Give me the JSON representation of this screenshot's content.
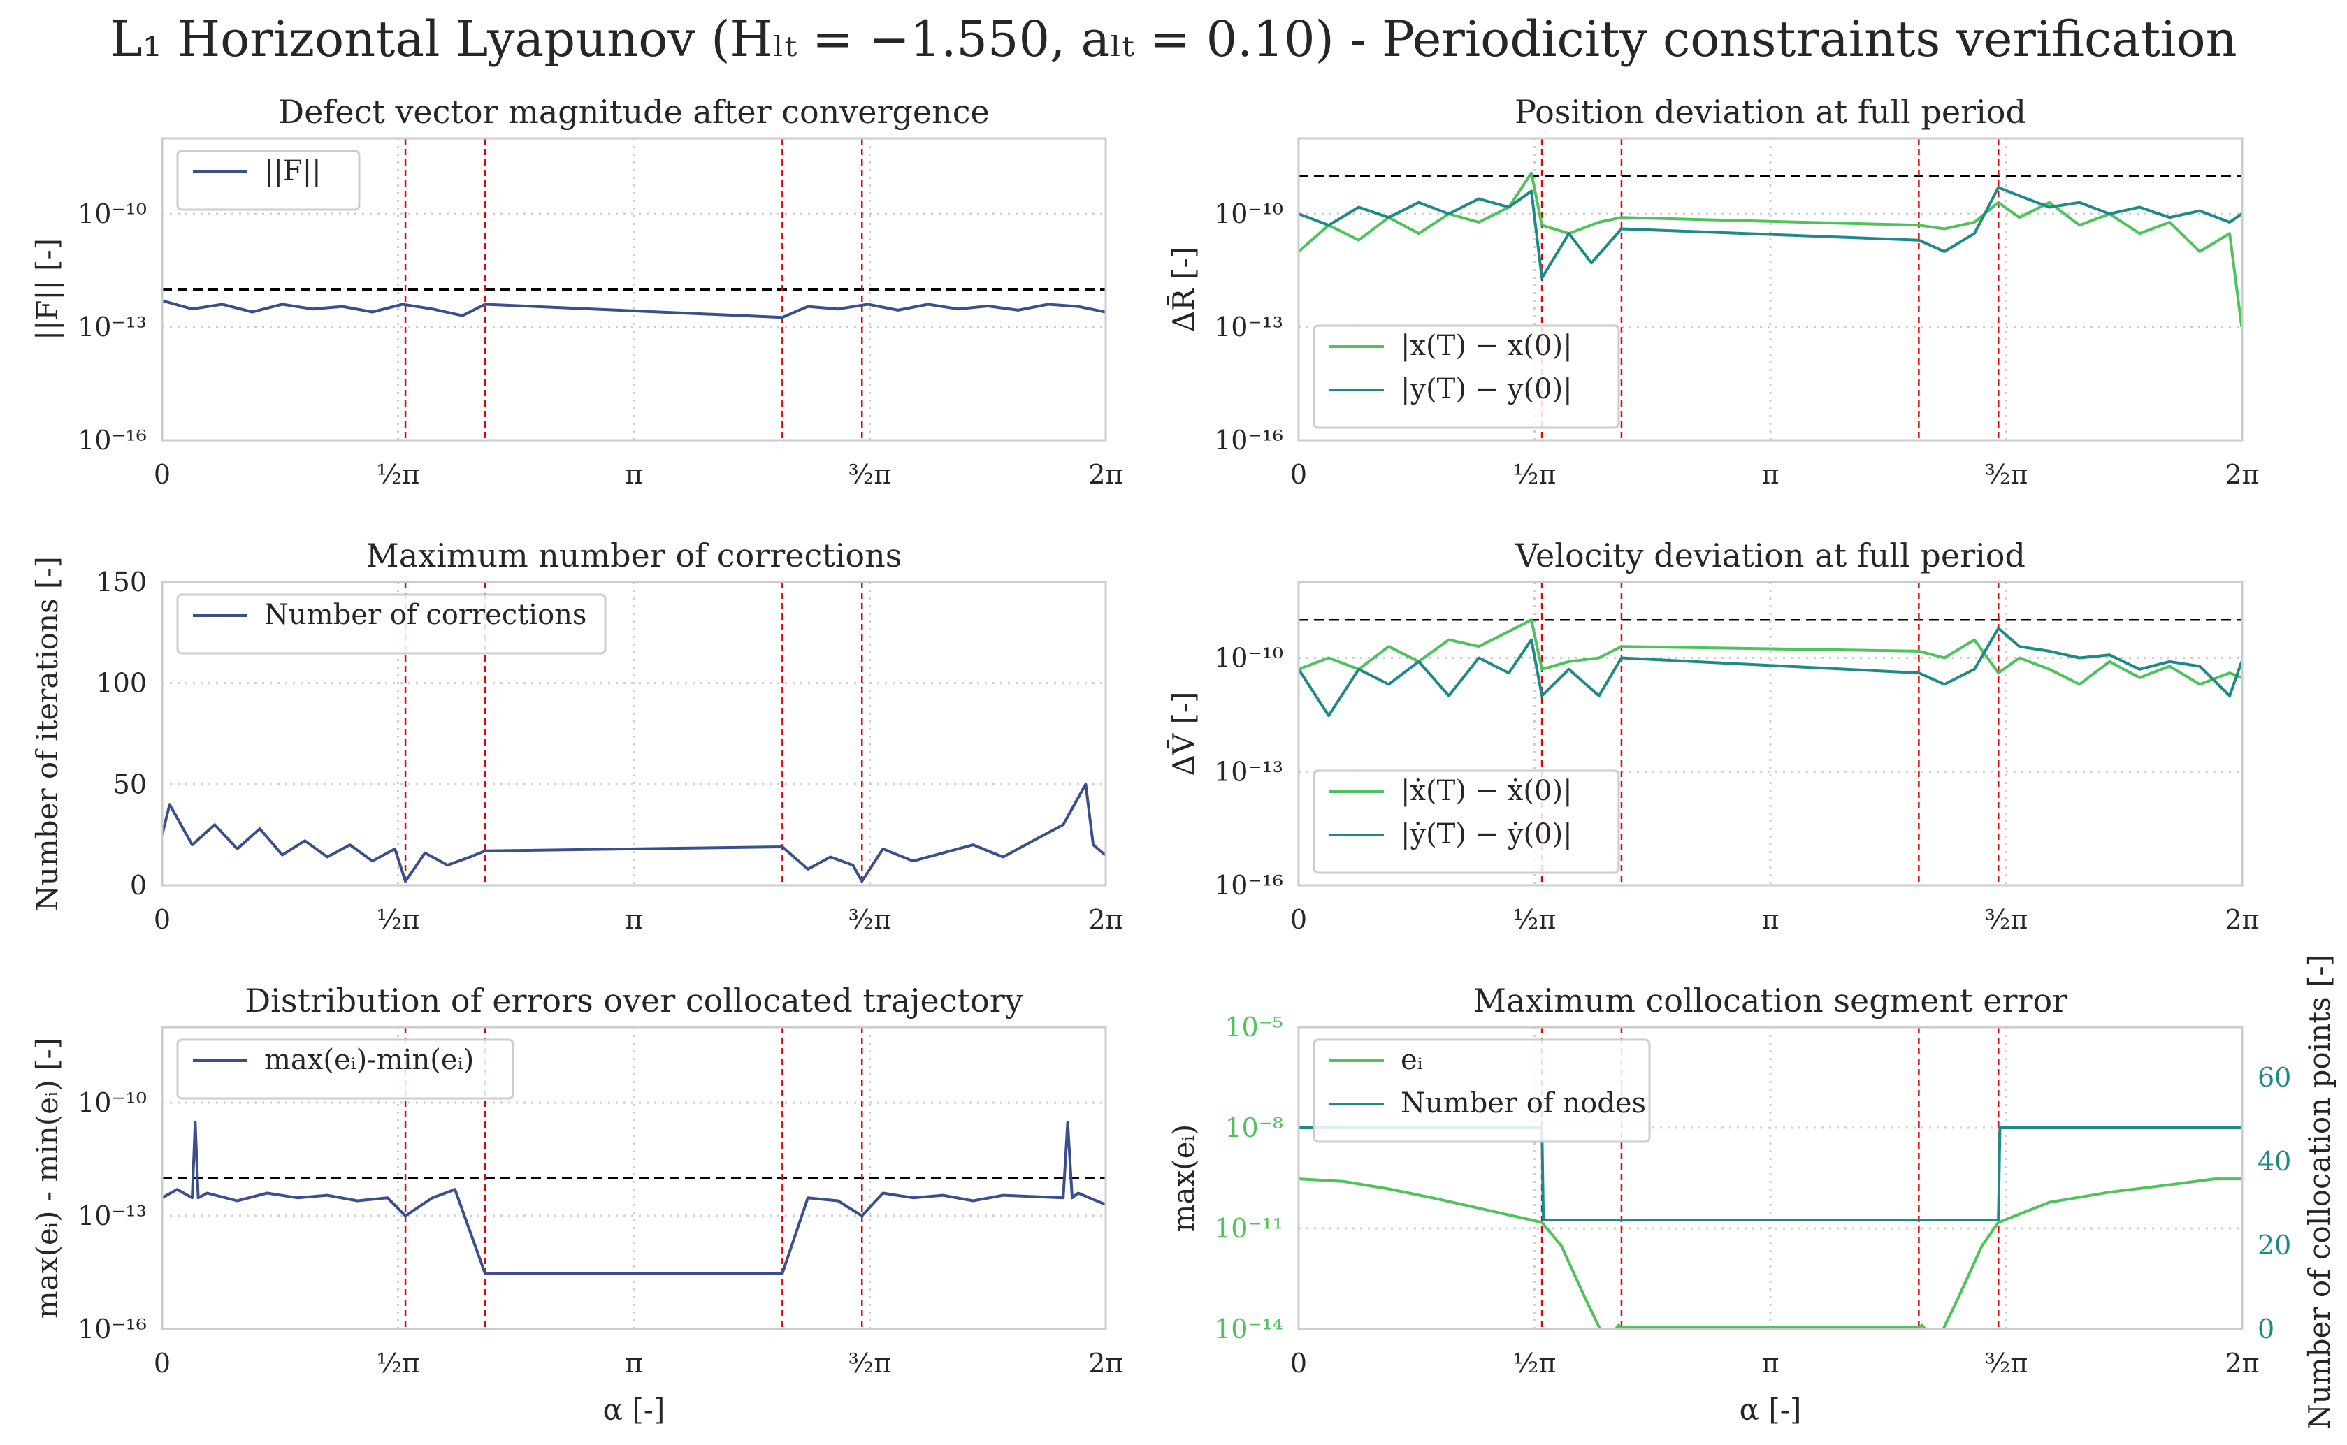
{
  "figure": {
    "title": "L₁ Horizontal Lyapunov (Hₗₜ = −1.550, aₗₜ = 0.10) - Periodicity constraints verification"
  },
  "colors": {
    "navy": "#3b4f8a",
    "light_green": "#4ec35c",
    "teal": "#1e8a87",
    "event_line": "#e8000b",
    "threshold": "#000000"
  },
  "chart_data": [
    {
      "id": "defect",
      "type": "line",
      "title": "Defect vector magnitude after convergence",
      "xlabel": "",
      "ylabel": "||F|| [-]",
      "yscale": "log",
      "xlim": [
        0,
        6.2832
      ],
      "ylim": [
        1e-16,
        1e-08
      ],
      "x_ticks": [
        "0",
        "½π",
        "π",
        "³⁄₂π",
        "2π"
      ],
      "y_ticks": [
        "10⁻¹⁰",
        "10⁻¹³",
        "10⁻¹⁶"
      ],
      "grid": true,
      "legend": "top-left",
      "threshold": 1e-12,
      "event_lines": [
        1.62,
        2.15,
        4.13,
        4.66
      ],
      "series": [
        {
          "name": "||F||",
          "color": "#3b4f8a",
          "x": [
            0.0,
            0.2,
            0.4,
            0.6,
            0.8,
            1.0,
            1.2,
            1.4,
            1.6,
            1.8,
            2.0,
            2.15,
            4.13,
            4.3,
            4.5,
            4.7,
            4.9,
            5.1,
            5.3,
            5.5,
            5.7,
            5.9,
            6.1,
            6.28
          ],
          "values": [
            5e-13,
            3e-13,
            4e-13,
            2.5e-13,
            4e-13,
            3e-13,
            3.5e-13,
            2.5e-13,
            4e-13,
            3e-13,
            2e-13,
            4e-13,
            1.8e-13,
            3.5e-13,
            3e-13,
            4e-13,
            2.8e-13,
            4e-13,
            3e-13,
            3.6e-13,
            2.8e-13,
            4e-13,
            3.5e-13,
            2.5e-13
          ]
        }
      ]
    },
    {
      "id": "position",
      "type": "line",
      "title": "Position deviation at full period",
      "xlabel": "",
      "ylabel": "ΔR̄ [-]",
      "yscale": "log",
      "xlim": [
        0,
        6.2832
      ],
      "ylim": [
        1e-16,
        1e-08
      ],
      "x_ticks": [
        "0",
        "½π",
        "π",
        "³⁄₂π",
        "2π"
      ],
      "y_ticks": [
        "10⁻¹⁰",
        "10⁻¹³",
        "10⁻¹⁶"
      ],
      "grid": true,
      "legend": "bottom-left",
      "threshold": 1e-09,
      "event_lines": [
        1.62,
        2.15,
        4.13,
        4.66
      ],
      "series": [
        {
          "name": "|x(T) − x(0)|",
          "color": "#4ec35c",
          "x": [
            0.0,
            0.2,
            0.4,
            0.6,
            0.8,
            1.0,
            1.2,
            1.4,
            1.55,
            1.62,
            1.8,
            2.0,
            2.15,
            4.13,
            4.3,
            4.5,
            4.66,
            4.8,
            5.0,
            5.2,
            5.4,
            5.6,
            5.8,
            6.0,
            6.2,
            6.28
          ],
          "values": [
            1e-11,
            5e-11,
            2e-11,
            8e-11,
            3e-11,
            1e-10,
            6e-11,
            1.5e-10,
            1.2e-09,
            5e-11,
            3e-11,
            6e-11,
            8e-11,
            5e-11,
            4e-11,
            6e-11,
            2e-10,
            8e-11,
            2e-10,
            5e-11,
            1e-10,
            3e-11,
            6e-11,
            1e-11,
            3e-11,
            1e-13
          ]
        },
        {
          "name": "|y(T) − y(0)|",
          "color": "#1e8a87",
          "x": [
            0.0,
            0.2,
            0.4,
            0.6,
            0.8,
            1.0,
            1.2,
            1.4,
            1.55,
            1.62,
            1.8,
            1.95,
            2.15,
            4.13,
            4.3,
            4.5,
            4.66,
            4.8,
            5.0,
            5.2,
            5.4,
            5.6,
            5.8,
            6.0,
            6.2,
            6.28
          ],
          "values": [
            1e-10,
            5e-11,
            1.5e-10,
            8e-11,
            2e-10,
            1e-10,
            2.5e-10,
            1.5e-10,
            4e-10,
            2e-12,
            3e-11,
            5e-12,
            4e-11,
            2e-11,
            1e-11,
            3e-11,
            5e-10,
            3e-10,
            1.5e-10,
            2e-10,
            1e-10,
            1.5e-10,
            8e-11,
            1.2e-10,
            6e-11,
            1e-10
          ]
        }
      ]
    },
    {
      "id": "corrections",
      "type": "line",
      "title": "Maximum number of corrections",
      "xlabel": "",
      "ylabel": "Number of iterations [-]",
      "yscale": "linear",
      "xlim": [
        0,
        6.2832
      ],
      "ylim": [
        0,
        150
      ],
      "x_ticks": [
        "0",
        "½π",
        "π",
        "³⁄₂π",
        "2π"
      ],
      "y_ticks": [
        "0",
        "50",
        "100",
        "150"
      ],
      "grid": true,
      "legend": "top-left",
      "event_lines": [
        1.62,
        2.15,
        4.13,
        4.66
      ],
      "series": [
        {
          "name": "Number of corrections",
          "color": "#3b4f8a",
          "x": [
            0.0,
            0.05,
            0.2,
            0.35,
            0.5,
            0.65,
            0.8,
            0.95,
            1.1,
            1.25,
            1.4,
            1.55,
            1.62,
            1.75,
            1.9,
            2.05,
            2.15,
            4.13,
            4.3,
            4.45,
            4.6,
            4.66,
            4.8,
            5.0,
            5.2,
            5.4,
            5.6,
            5.8,
            6.0,
            6.15,
            6.2,
            6.28
          ],
          "values": [
            25,
            40,
            20,
            30,
            18,
            28,
            15,
            22,
            14,
            20,
            12,
            18,
            2,
            16,
            10,
            14,
            17,
            19,
            8,
            14,
            10,
            2,
            18,
            12,
            16,
            20,
            14,
            22,
            30,
            50,
            20,
            15
          ]
        }
      ]
    },
    {
      "id": "velocity",
      "type": "line",
      "title": "Velocity deviation at full period",
      "xlabel": "",
      "ylabel": "ΔV̄ [-]",
      "yscale": "log",
      "xlim": [
        0,
        6.2832
      ],
      "ylim": [
        1e-16,
        1e-08
      ],
      "x_ticks": [
        "0",
        "½π",
        "π",
        "³⁄₂π",
        "2π"
      ],
      "y_ticks": [
        "10⁻¹⁰",
        "10⁻¹³",
        "10⁻¹⁶"
      ],
      "grid": true,
      "legend": "bottom-left",
      "threshold": 1e-09,
      "event_lines": [
        1.62,
        2.15,
        4.13,
        4.66
      ],
      "series": [
        {
          "name": "|ẋ(T) − ẋ(0)|",
          "color": "#4ec35c",
          "x": [
            0.0,
            0.2,
            0.4,
            0.6,
            0.8,
            1.0,
            1.2,
            1.4,
            1.55,
            1.62,
            1.8,
            2.0,
            2.15,
            4.13,
            4.3,
            4.5,
            4.66,
            4.8,
            5.0,
            5.2,
            5.4,
            5.6,
            5.8,
            6.0,
            6.2,
            6.28
          ],
          "values": [
            5e-11,
            1e-10,
            5e-11,
            2e-10,
            8e-11,
            3e-10,
            2e-10,
            5e-10,
            1e-09,
            5e-11,
            8e-11,
            1e-10,
            2e-10,
            1.5e-10,
            1e-10,
            3e-10,
            4e-11,
            1e-10,
            5e-11,
            2e-11,
            8e-11,
            3e-11,
            6e-11,
            2e-11,
            4e-11,
            3e-11
          ]
        },
        {
          "name": "|ẏ(T) − ẏ(0)|",
          "color": "#1e8a87",
          "x": [
            0.0,
            0.2,
            0.4,
            0.6,
            0.8,
            1.0,
            1.2,
            1.4,
            1.55,
            1.62,
            1.8,
            2.0,
            2.15,
            4.13,
            4.3,
            4.5,
            4.66,
            4.8,
            5.0,
            5.2,
            5.4,
            5.6,
            5.8,
            6.0,
            6.2,
            6.28
          ],
          "values": [
            5e-11,
            3e-12,
            5e-11,
            2e-11,
            8e-11,
            1e-11,
            1e-10,
            4e-11,
            3e-10,
            1e-11,
            5e-11,
            1e-11,
            1e-10,
            4e-11,
            2e-11,
            5e-11,
            6e-10,
            2e-10,
            1.5e-10,
            1e-10,
            1.2e-10,
            5e-11,
            8e-11,
            6e-11,
            1e-11,
            8e-11
          ]
        }
      ]
    },
    {
      "id": "distribution",
      "type": "line",
      "title": "Distribution of errors over collocated trajectory",
      "xlabel": "α [-]",
      "ylabel": "max(eᵢ) - min(eᵢ) [-]",
      "yscale": "log",
      "xlim": [
        0,
        6.2832
      ],
      "ylim": [
        1e-16,
        1e-08
      ],
      "x_ticks": [
        "0",
        "½π",
        "π",
        "³⁄₂π",
        "2π"
      ],
      "y_ticks": [
        "10⁻¹⁰",
        "10⁻¹³",
        "10⁻¹⁶"
      ],
      "grid": true,
      "legend": "top-left",
      "threshold": 1e-12,
      "event_lines": [
        1.62,
        2.15,
        4.13,
        4.66
      ],
      "series": [
        {
          "name": "max(eᵢ)-min(eᵢ)",
          "color": "#3b4f8a",
          "x": [
            0.0,
            0.1,
            0.2,
            0.22,
            0.24,
            0.3,
            0.5,
            0.7,
            0.9,
            1.1,
            1.3,
            1.5,
            1.62,
            1.8,
            1.95,
            2.15,
            4.13,
            4.3,
            4.5,
            4.66,
            4.8,
            5.0,
            5.2,
            5.4,
            5.6,
            6.0,
            6.03,
            6.06,
            6.1,
            6.28
          ],
          "values": [
            3e-13,
            5e-13,
            3e-13,
            3e-11,
            3e-13,
            4e-13,
            2.5e-13,
            4e-13,
            3e-13,
            3.5e-13,
            2.5e-13,
            3e-13,
            1e-13,
            3e-13,
            5e-13,
            3e-15,
            3e-15,
            3e-13,
            2.5e-13,
            1e-13,
            4e-13,
            3e-13,
            3.5e-13,
            2.5e-13,
            3.5e-13,
            3e-13,
            3e-11,
            3e-13,
            4e-13,
            2e-13
          ]
        }
      ]
    },
    {
      "id": "segment",
      "type": "line",
      "title": "Maximum collocation segment error",
      "xlabel": "α [-]",
      "ylabel": "max(eᵢ)",
      "ylabel_right": "Number of collocation points [-]",
      "yscale": "log",
      "xlim": [
        0,
        6.2832
      ],
      "ylim": [
        1e-14,
        1e-05
      ],
      "y2lim": [
        0,
        72
      ],
      "x_ticks": [
        "0",
        "½π",
        "π",
        "³⁄₂π",
        "2π"
      ],
      "y_ticks": [
        "10⁻⁵",
        "10⁻⁸",
        "10⁻¹¹",
        "10⁻¹⁴"
      ],
      "y2_ticks": [
        "0",
        "20",
        "40",
        "60"
      ],
      "grid": true,
      "legend": "top-left",
      "event_lines": [
        1.62,
        2.15,
        4.13,
        4.66
      ],
      "series": [
        {
          "name": "eᵢ",
          "color": "#4ec35c",
          "axis": "left",
          "x": [
            0.0,
            0.3,
            0.6,
            0.9,
            1.2,
            1.5,
            1.62,
            1.75,
            1.9,
            2.05,
            2.13,
            2.15,
            4.13,
            4.15,
            4.25,
            4.4,
            4.55,
            4.66,
            5.0,
            5.4,
            5.8,
            6.1,
            6.28
          ],
          "values": [
            3e-10,
            2.5e-10,
            1.5e-10,
            8e-11,
            4e-11,
            2e-11,
            1.5e-11,
            3e-12,
            1e-13,
            4e-15,
            1.3e-14,
            1.1e-14,
            1.1e-14,
            1.3e-14,
            4e-15,
            1e-13,
            3e-12,
            1.5e-11,
            6e-11,
            1.2e-10,
            2e-10,
            3e-10,
            3e-10
          ]
        },
        {
          "name": "Number of nodes",
          "color": "#1e8a87",
          "axis": "right",
          "x": [
            0.0,
            1.62,
            1.63,
            4.66,
            4.67,
            6.28
          ],
          "values": [
            48,
            48,
            26,
            26,
            48,
            48
          ]
        }
      ]
    }
  ]
}
